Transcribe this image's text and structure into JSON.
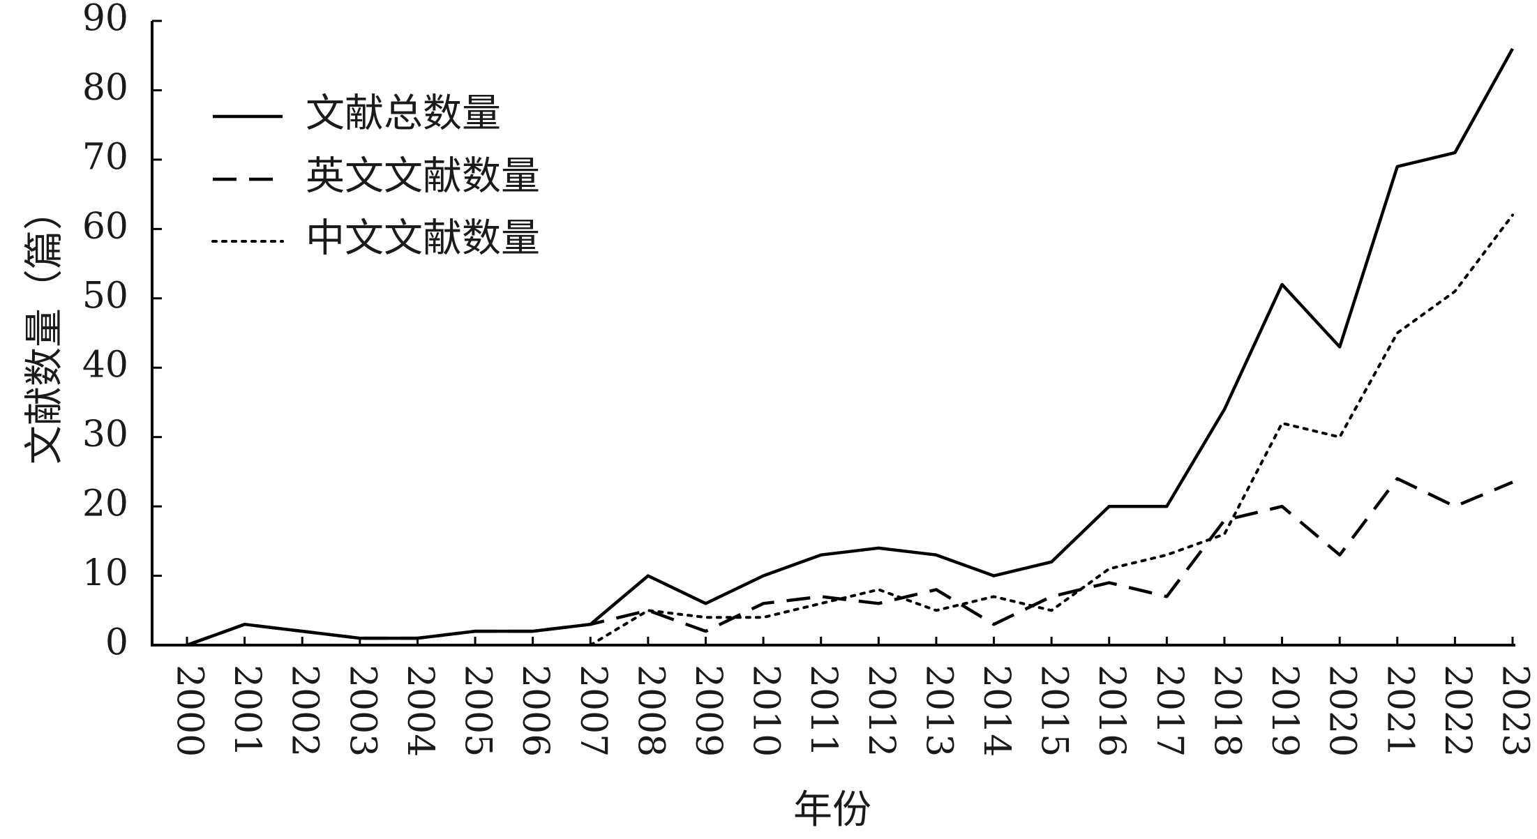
{
  "chart_data": {
    "type": "line",
    "title": "",
    "xlabel": "年份",
    "ylabel": "文献数量（篇）",
    "ylim": [
      0,
      90
    ],
    "yticks": [
      0,
      10,
      20,
      30,
      40,
      50,
      60,
      70,
      80,
      90
    ],
    "grid": false,
    "legend_position": "top-left",
    "x": [
      "2000",
      "2001",
      "2002",
      "2003",
      "2004",
      "2005",
      "2006",
      "2007",
      "2008",
      "2009",
      "2010",
      "2011",
      "2012",
      "2013",
      "2014",
      "2015",
      "2016",
      "2017",
      "2018",
      "2019",
      "2020",
      "2021",
      "2022",
      "2023"
    ],
    "series": [
      {
        "name": "文献总数量",
        "style": "solid",
        "color": "#000000",
        "values": [
          0,
          3,
          2,
          1,
          1,
          2,
          2,
          3,
          10,
          6,
          10,
          13,
          14,
          13,
          10,
          12,
          20,
          20,
          34,
          52,
          43,
          69,
          71,
          86
        ]
      },
      {
        "name": "英文文献数量",
        "style": "dashed",
        "color": "#000000",
        "values": [
          0,
          3,
          2,
          1,
          1,
          2,
          2,
          3,
          5,
          2,
          6,
          7,
          6,
          8,
          3,
          7,
          9,
          7,
          18,
          20,
          13,
          24,
          20,
          23.5
        ]
      },
      {
        "name": "中文文献数量",
        "style": "dotted",
        "color": "#000000",
        "values": [
          null,
          null,
          null,
          null,
          null,
          null,
          null,
          0,
          5,
          4,
          4,
          6,
          8,
          5,
          7,
          5,
          11,
          13,
          16,
          32,
          30,
          45,
          51,
          62
        ]
      }
    ]
  }
}
